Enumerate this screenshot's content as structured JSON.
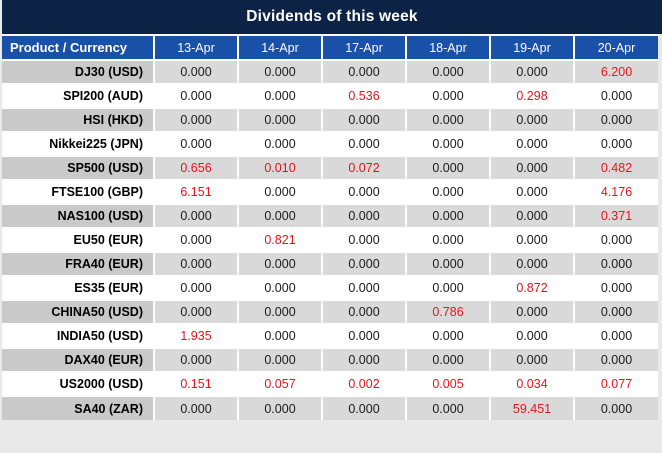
{
  "title": "Dividends of this week",
  "table": {
    "product_header": "Product / Currency",
    "dates": [
      "13-Apr",
      "14-Apr",
      "17-Apr",
      "18-Apr",
      "19-Apr",
      "20-Apr"
    ],
    "rows": [
      {
        "product": "DJ30 (USD)",
        "values": [
          "0.000",
          "0.000",
          "0.000",
          "0.000",
          "0.000",
          "6.200"
        ]
      },
      {
        "product": "SPI200 (AUD)",
        "values": [
          "0.000",
          "0.000",
          "0.536",
          "0.000",
          "0.298",
          "0.000"
        ]
      },
      {
        "product": "HSI (HKD)",
        "values": [
          "0.000",
          "0.000",
          "0.000",
          "0.000",
          "0.000",
          "0.000"
        ]
      },
      {
        "product": "Nikkei225 (JPN)",
        "values": [
          "0.000",
          "0.000",
          "0.000",
          "0.000",
          "0.000",
          "0.000"
        ]
      },
      {
        "product": "SP500 (USD)",
        "values": [
          "0.656",
          "0.010",
          "0.072",
          "0.000",
          "0.000",
          "0.482"
        ]
      },
      {
        "product": "FTSE100 (GBP)",
        "values": [
          "6.151",
          "0.000",
          "0.000",
          "0.000",
          "0.000",
          "4.176"
        ]
      },
      {
        "product": "NAS100 (USD)",
        "values": [
          "0.000",
          "0.000",
          "0.000",
          "0.000",
          "0.000",
          "0.371"
        ]
      },
      {
        "product": "EU50 (EUR)",
        "values": [
          "0.000",
          "0.821",
          "0.000",
          "0.000",
          "0.000",
          "0.000"
        ]
      },
      {
        "product": "FRA40 (EUR)",
        "values": [
          "0.000",
          "0.000",
          "0.000",
          "0.000",
          "0.000",
          "0.000"
        ]
      },
      {
        "product": "ES35 (EUR)",
        "values": [
          "0.000",
          "0.000",
          "0.000",
          "0.000",
          "0.872",
          "0.000"
        ]
      },
      {
        "product": "CHINA50 (USD)",
        "values": [
          "0.000",
          "0.000",
          "0.000",
          "0.786",
          "0.000",
          "0.000"
        ]
      },
      {
        "product": "INDIA50 (USD)",
        "values": [
          "1.935",
          "0.000",
          "0.000",
          "0.000",
          "0.000",
          "0.000"
        ]
      },
      {
        "product": "DAX40 (EUR)",
        "values": [
          "0.000",
          "0.000",
          "0.000",
          "0.000",
          "0.000",
          "0.000"
        ]
      },
      {
        "product": "US2000 (USD)",
        "values": [
          "0.151",
          "0.057",
          "0.002",
          "0.005",
          "0.034",
          "0.077"
        ]
      },
      {
        "product": "SA40 (ZAR)",
        "values": [
          "0.000",
          "0.000",
          "0.000",
          "0.000",
          "59.451",
          "0.000"
        ]
      }
    ]
  },
  "colors": {
    "title_bg": "#0d2345",
    "header_bg": "#1a51a8",
    "row_gray_label": "#c9c9c9",
    "row_gray_value": "#d9d9d9",
    "value_red": "#e8131d",
    "text_dark": "#1a1a1a"
  }
}
